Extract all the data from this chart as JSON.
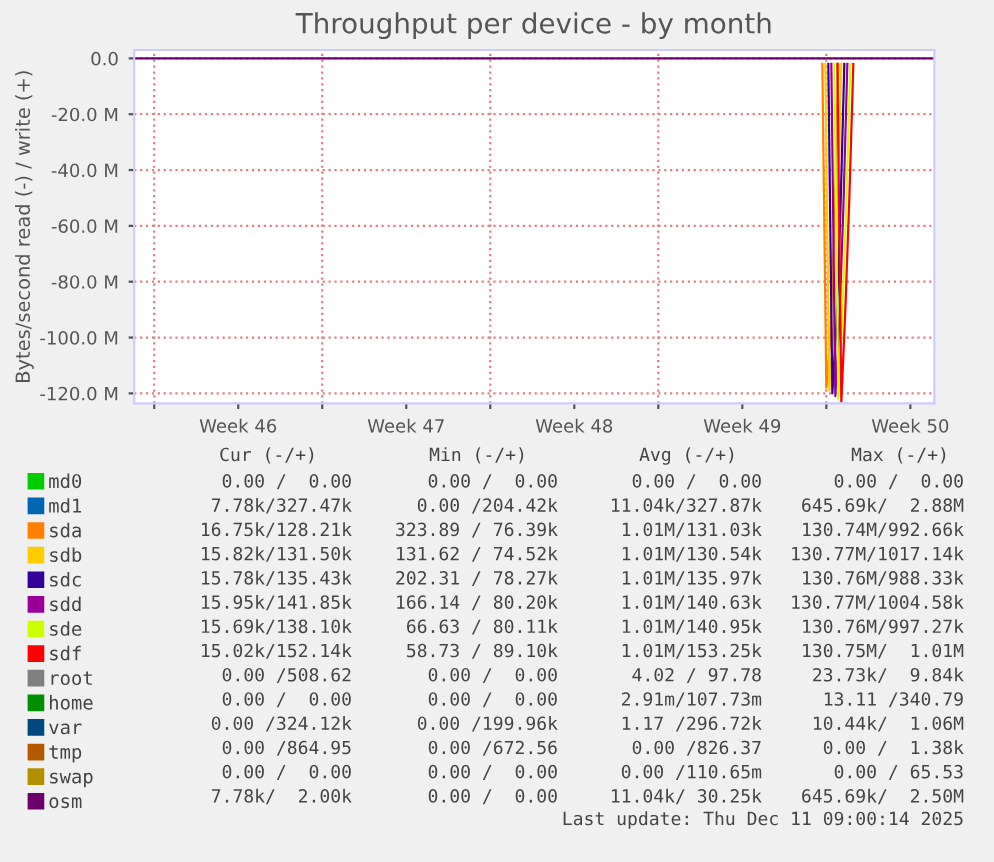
{
  "chart_data": {
    "type": "line",
    "title": "Throughput per device - by month",
    "ylabel": "Bytes/second read (-) / write (+)",
    "x": [
      "2025-11-09T04:00",
      "2025-12-07T20:00",
      "2025-12-07T22:00",
      "2025-12-08T02:00",
      "2025-12-08T05:00",
      "2025-12-08T08:00",
      "2025-12-08T11:00",
      "2025-12-08T14:00",
      "2025-12-12T12:00"
    ],
    "xlim": [
      "2025-11-09T04:00",
      "2025-12-12T12:00"
    ],
    "xticks": [
      {
        "value": "2025-11-10",
        "label": null
      },
      {
        "value": "2025-11-13T12:00",
        "label": "Week 46"
      },
      {
        "value": "2025-11-17",
        "label": null
      },
      {
        "value": "2025-11-20T12:00",
        "label": "Week 47"
      },
      {
        "value": "2025-11-24",
        "label": null
      },
      {
        "value": "2025-11-27T12:00",
        "label": "Week 48"
      },
      {
        "value": "2025-12-01",
        "label": null
      },
      {
        "value": "2025-12-04T12:00",
        "label": "Week 49"
      },
      {
        "value": "2025-12-08",
        "label": null
      },
      {
        "value": "2025-12-11T12:00",
        "label": "Week 50"
      }
    ],
    "ylim": [
      -123.6,
      3
    ],
    "yticks": [
      {
        "value": 0,
        "label": "0.0"
      },
      {
        "value": -20,
        "label": "-20.0 M"
      },
      {
        "value": -40,
        "label": "-40.0 M"
      },
      {
        "value": -60,
        "label": "-60.0 M"
      },
      {
        "value": -80,
        "label": "-80.0 M"
      },
      {
        "value": -100,
        "label": "-100.0 M"
      },
      {
        "value": -120,
        "label": "-120.0 M"
      }
    ],
    "grid": true,
    "legend": "bottom left",
    "marker": "none",
    "line_style": "solid",
    "series": [
      {
        "name": "md0",
        "color": "#00cc00",
        "values": [
          null,
          null,
          null,
          null,
          null,
          null,
          null,
          null,
          null
        ]
      },
      {
        "name": "md1",
        "color": "#0066b3",
        "values": [
          null,
          null,
          null,
          null,
          null,
          null,
          null,
          null,
          null
        ]
      },
      {
        "name": "sda",
        "color": "#ff8000",
        "x": [
          "2025-12-07T20:00",
          "2025-12-08T00:00",
          "2025-12-08T04:00",
          "2025-12-08T08:00",
          "2025-12-08T12:00"
        ],
        "values": [
          -2,
          -118,
          -100,
          -60,
          -2
        ]
      },
      {
        "name": "sdb",
        "color": "#ffcc00",
        "x": [
          "2025-12-07T23:00",
          "2025-12-08T03:00",
          "2025-12-08T07:00",
          "2025-12-08T11:00",
          "2025-12-08T15:00"
        ],
        "values": [
          -2,
          -119,
          -98,
          -58,
          -2
        ]
      },
      {
        "name": "sdc",
        "color": "#330099",
        "x": [
          "2025-12-08T02:00",
          "2025-12-08T06:00",
          "2025-12-08T10:00",
          "2025-12-08T14:00",
          "2025-12-08T18:00"
        ],
        "values": [
          -2,
          -120,
          -96,
          -56,
          -2
        ]
      },
      {
        "name": "sdd",
        "color": "#990099",
        "x": [
          "2025-12-08T05:00",
          "2025-12-08T09:00",
          "2025-12-08T13:00",
          "2025-12-08T17:00",
          "2025-12-08T21:00"
        ],
        "values": [
          -2,
          -121,
          -94,
          -54,
          -2
        ]
      },
      {
        "name": "sde",
        "color": "#ccff00",
        "x": [
          "2025-12-08T08:00",
          "2025-12-08T12:00",
          "2025-12-08T16:00",
          "2025-12-08T20:00",
          "2025-12-09T00:00"
        ],
        "values": [
          -2,
          -122,
          -92,
          -52,
          -2
        ]
      },
      {
        "name": "sdf",
        "color": "#ff0000",
        "x": [
          "2025-12-08T11:00",
          "2025-12-08T15:00",
          "2025-12-08T19:00",
          "2025-12-08T23:00",
          "2025-12-09T03:00"
        ],
        "values": [
          -2,
          -123,
          -90,
          -50,
          -2
        ]
      },
      {
        "name": "root",
        "color": "#808080",
        "values": [
          null,
          null,
          null,
          null,
          null,
          null,
          null,
          null,
          null
        ]
      },
      {
        "name": "home",
        "color": "#008f00",
        "values": [
          null,
          null,
          null,
          null,
          null,
          null,
          null,
          null,
          null
        ]
      },
      {
        "name": "var",
        "color": "#00487d",
        "values": [
          null,
          null,
          null,
          null,
          null,
          null,
          null,
          null,
          null
        ]
      },
      {
        "name": "tmp",
        "color": "#b35a00",
        "values": [
          null,
          null,
          null,
          null,
          null,
          null,
          null,
          null,
          null
        ]
      },
      {
        "name": "swap",
        "color": "#b38f00",
        "values": [
          null,
          null,
          null,
          null,
          null,
          null,
          null,
          null,
          null
        ]
      },
      {
        "name": "osm",
        "color": "#6b006b",
        "values": [
          0,
          0,
          0,
          0,
          0,
          0,
          0,
          0,
          0
        ]
      }
    ],
    "annotations": [
      "Cur (-/+)",
      "Min (-/+)",
      "Avg (-/+)",
      "Max (-/+)",
      "0.00 /  0.00",
      "0.00 /  0.00",
      "0.00 /  0.00",
      "0.00 /  0.00",
      "7.78k/327.47k",
      "0.00 /204.42k",
      "11.04k/327.87k",
      "645.69k/  2.88M",
      "16.75k/128.21k",
      "323.89 / 76.39k",
      "1.01M/131.03k",
      "130.74M/992.66k",
      "15.82k/131.50k",
      "131.62 / 74.52k",
      "1.01M/130.54k",
      "130.77M/1017.14k",
      "15.78k/135.43k",
      "202.31 / 78.27k",
      "1.01M/135.97k",
      "130.76M/988.33k",
      "15.95k/141.85k",
      "166.14 / 80.20k",
      "1.01M/140.63k",
      "130.77M/1004.58k",
      "15.69k/138.10k",
      "66.63 / 80.11k",
      "1.01M/140.95k",
      "130.76M/997.27k",
      "15.02k/152.14k",
      "58.73 / 89.10k",
      "1.01M/153.25k",
      "130.75M/  1.01M",
      "0.00 /508.62",
      "0.00 /  0.00",
      "4.02 / 97.78",
      "23.73k/  9.84k",
      "0.00 /  0.00",
      "0.00 /  0.00",
      "2.91m/107.73m",
      "13.11 /340.79",
      "0.00 /324.12k",
      "0.00 /199.96k",
      "1.17 /296.72k",
      "10.44k/  1.06M",
      "0.00 /864.95",
      "0.00 /672.56",
      "0.00 /826.37",
      "0.00 /  1.38k",
      "0.00 /  0.00",
      "0.00 /  0.00",
      "0.00 /110.65m",
      "0.00 / 65.53",
      "7.78k/  2.00k",
      "0.00 /  0.00",
      "11.04k/ 30.25k",
      "645.69k/  2.50M",
      "Last update: Thu Dec 11 09:00:14 2025"
    ]
  }
}
